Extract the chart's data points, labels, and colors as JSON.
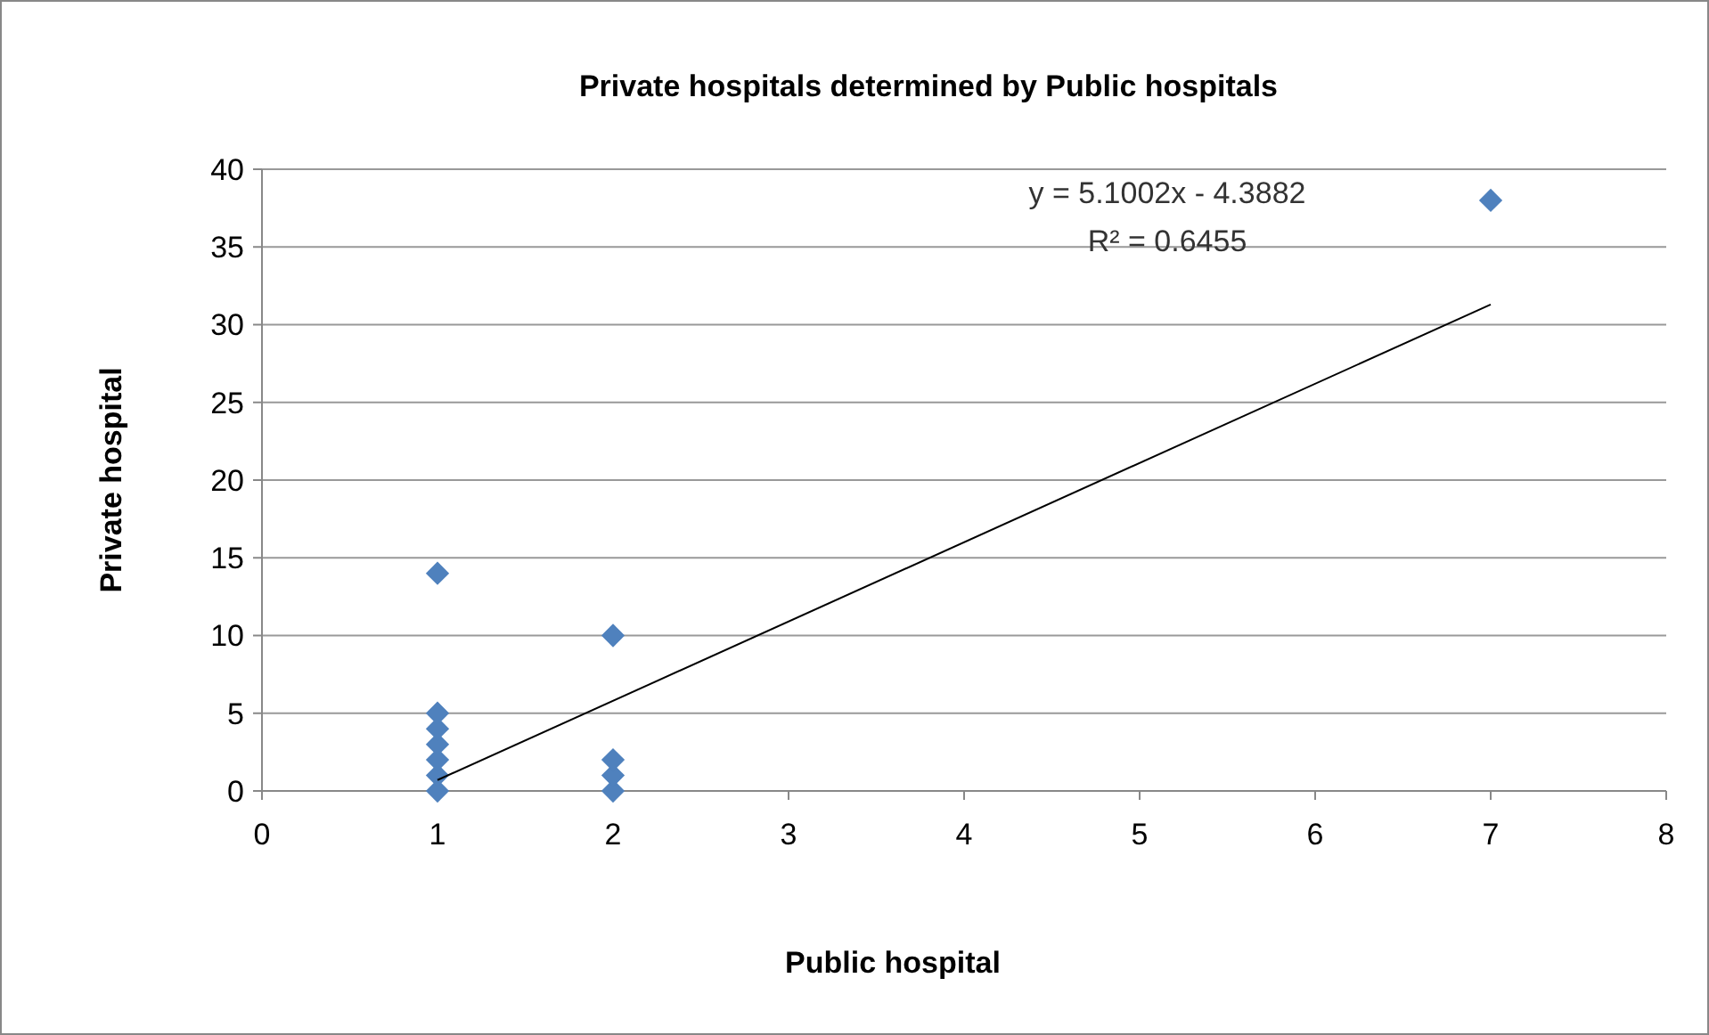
{
  "chart_data": {
    "type": "scatter",
    "title": "Private hospitals  determined by Public hospitals",
    "xlabel": "Public hospital",
    "ylabel": "Private hospital",
    "annotations": [
      "y = 5.1002x - 4.3882",
      "R² = 0.6455"
    ],
    "xlim": [
      0,
      8
    ],
    "xticks": [
      0,
      1,
      2,
      3,
      4,
      5,
      6,
      7,
      8
    ],
    "ylim": [
      0,
      40
    ],
    "yticks": [
      0,
      5,
      10,
      15,
      20,
      25,
      30,
      35,
      40
    ],
    "grid": "y",
    "marker": "diamond",
    "series": [
      {
        "color": "#4f81bd",
        "x": [
          1,
          1,
          1,
          1,
          1,
          1,
          1,
          2,
          2,
          2,
          2,
          7
        ],
        "values": [
          0,
          1,
          2,
          3,
          4,
          5,
          14,
          0,
          1,
          2,
          10,
          38
        ]
      },
      {
        "type": "line",
        "color": "#000000",
        "marker": "none",
        "line_style": "solid",
        "x": [
          1,
          7
        ],
        "values": [
          0.7,
          31.3
        ]
      }
    ]
  }
}
